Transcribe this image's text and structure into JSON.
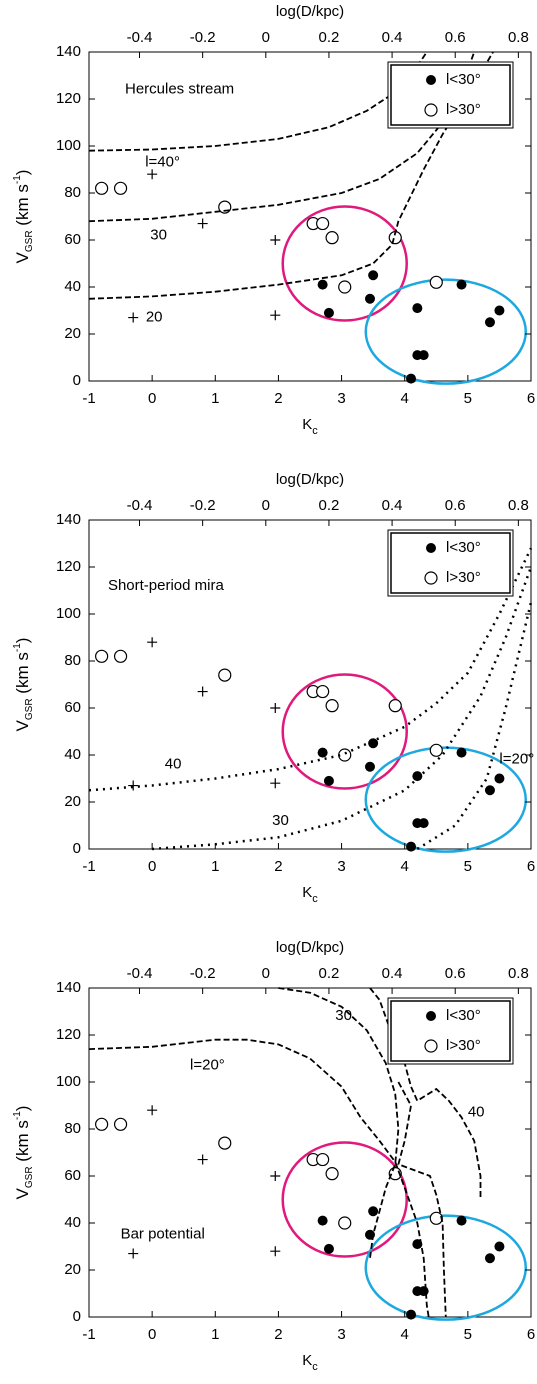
{
  "chart_data": [
    {
      "type": "scatter",
      "title": "Hercules stream",
      "x2label": "log(D/kpc)",
      "xlabel": [
        "K",
        "c"
      ],
      "ylabel": [
        "V",
        "GSR",
        " (km s",
        "-1",
        ")"
      ],
      "xlim": [
        -1,
        6
      ],
      "xticks": [
        -1,
        0,
        1,
        2,
        3,
        4,
        5,
        6
      ],
      "ylim": [
        0,
        140
      ],
      "yticks": [
        0,
        20,
        40,
        60,
        80,
        100,
        120,
        140
      ],
      "x2lim": [
        -0.56,
        0.84
      ],
      "x2ticks": [
        -0.4,
        -0.2,
        0,
        0.2,
        0.4,
        0.6,
        0.8
      ],
      "legend": "upper right",
      "annotations": [
        "l=40°",
        "30",
        "20"
      ],
      "series": [
        {
          "name": "l<30°",
          "marker": "filled",
          "color": "#000000",
          "x": [
            2.7,
            2.8,
            3.45,
            3.5,
            4.2,
            4.2,
            4.3,
            4.1,
            4.9,
            5.35,
            5.5
          ],
          "values": [
            41,
            29,
            35,
            45,
            31,
            11,
            11,
            1,
            41,
            25,
            30
          ]
        },
        {
          "name": "l>30°",
          "marker": "open",
          "color": "#000000",
          "x": [
            -0.8,
            -0.5,
            1.15,
            2.55,
            2.7,
            2.85,
            3.05,
            3.85,
            4.5
          ],
          "values": [
            82,
            82,
            74,
            67,
            67,
            61,
            40,
            61,
            42
          ]
        },
        {
          "marker": "plus",
          "color": "#000000",
          "x": [
            0,
            0.8,
            1.95,
            -0.3,
            1.95
          ],
          "values": [
            88,
            67,
            60,
            27,
            28
          ]
        },
        {
          "style": "dashed",
          "color": "#000000",
          "x": [
            -1,
            0,
            1,
            2,
            2.8,
            3.4,
            3.8,
            4.1,
            4.35
          ],
          "values": [
            98,
            98.5,
            100,
            103,
            108,
            115,
            122,
            130,
            140
          ]
        },
        {
          "style": "dashed",
          "color": "#000000",
          "x": [
            -1,
            0,
            1,
            2,
            3,
            3.6,
            4.2,
            4.6,
            4.9,
            5.1
          ],
          "values": [
            68,
            69,
            72,
            75,
            80,
            86,
            97,
            110,
            125,
            140
          ]
        },
        {
          "style": "dashed",
          "color": "#000000",
          "x": [
            -1,
            0,
            1,
            2,
            3,
            3.5,
            3.8,
            3.9,
            4.3,
            4.6,
            5.0,
            5.4
          ],
          "values": [
            35,
            36,
            38,
            41,
            45,
            50,
            58,
            68,
            90,
            105,
            122,
            140
          ]
        }
      ]
    },
    {
      "type": "scatter",
      "title": "Short-period mira",
      "x2label": "log(D/kpc)",
      "xlabel": [
        "K",
        "c"
      ],
      "ylabel": [
        "V",
        "GSR",
        " (km s",
        "-1",
        ")"
      ],
      "xlim": [
        -1,
        6
      ],
      "xticks": [
        -1,
        0,
        1,
        2,
        3,
        4,
        5,
        6
      ],
      "ylim": [
        0,
        140
      ],
      "yticks": [
        0,
        20,
        40,
        60,
        80,
        100,
        120,
        140
      ],
      "x2lim": [
        -0.56,
        0.84
      ],
      "x2ticks": [
        -0.4,
        -0.2,
        0,
        0.2,
        0.4,
        0.6,
        0.8
      ],
      "legend": "upper right",
      "annotations": [
        "40",
        "30",
        "l=20°"
      ],
      "series": [
        {
          "name": "l<30°",
          "marker": "filled",
          "color": "#000000",
          "x": [
            2.7,
            2.8,
            3.45,
            3.5,
            4.2,
            4.2,
            4.3,
            4.1,
            4.9,
            5.35,
            5.5
          ],
          "values": [
            41,
            29,
            35,
            45,
            31,
            11,
            11,
            1,
            41,
            25,
            30
          ]
        },
        {
          "name": "l>30°",
          "marker": "open",
          "color": "#000000",
          "x": [
            -0.8,
            -0.5,
            1.15,
            2.55,
            2.7,
            2.85,
            3.05,
            3.85,
            4.5
          ],
          "values": [
            82,
            82,
            74,
            67,
            67,
            61,
            40,
            61,
            42
          ]
        },
        {
          "marker": "plus",
          "color": "#000000",
          "x": [
            0,
            0.8,
            1.95,
            -0.3,
            1.95
          ],
          "values": [
            88,
            67,
            60,
            27,
            28
          ]
        },
        {
          "style": "dotted",
          "color": "#000000",
          "x": [
            -1,
            0,
            1,
            2,
            3,
            4,
            4.5,
            5,
            5.5,
            6
          ],
          "values": [
            25,
            27,
            30,
            34,
            40,
            52,
            62,
            75,
            100,
            128
          ]
        },
        {
          "style": "dotted",
          "color": "#000000",
          "x": [
            0,
            1,
            2,
            3,
            4,
            4.6,
            5.2,
            5.6,
            6
          ],
          "values": [
            0,
            2,
            5,
            12,
            25,
            40,
            65,
            90,
            120
          ]
        },
        {
          "style": "dotted",
          "color": "#000000",
          "x": [
            4.2,
            4.8,
            5.3,
            5.6,
            6
          ],
          "values": [
            0,
            10,
            30,
            60,
            105
          ]
        }
      ]
    },
    {
      "type": "scatter",
      "title": "Bar potential",
      "x2label": "log(D/kpc)",
      "xlabel": [
        "K",
        "c"
      ],
      "ylabel": [
        "V",
        "GSR",
        " (km s",
        "-1",
        ")"
      ],
      "xlim": [
        -1,
        6
      ],
      "xticks": [
        -1,
        0,
        1,
        2,
        3,
        4,
        5,
        6
      ],
      "ylim": [
        0,
        140
      ],
      "yticks": [
        0,
        20,
        40,
        60,
        80,
        100,
        120,
        140
      ],
      "x2lim": [
        -0.56,
        0.84
      ],
      "x2ticks": [
        -0.4,
        -0.2,
        0,
        0.2,
        0.4,
        0.6,
        0.8
      ],
      "legend": "upper right",
      "annotations": [
        "l=20°",
        "30",
        "40"
      ],
      "series": [
        {
          "name": "l<30°",
          "marker": "filled",
          "color": "#000000",
          "x": [
            2.7,
            2.8,
            3.45,
            3.5,
            4.2,
            4.2,
            4.3,
            4.1,
            4.9,
            5.35,
            5.5
          ],
          "values": [
            41,
            29,
            35,
            45,
            31,
            11,
            11,
            1,
            41,
            25,
            30
          ]
        },
        {
          "name": "l>30°",
          "marker": "open",
          "color": "#000000",
          "x": [
            -0.8,
            -0.5,
            1.15,
            2.55,
            2.7,
            2.85,
            3.05,
            3.85,
            4.5
          ],
          "values": [
            82,
            82,
            74,
            67,
            67,
            61,
            40,
            61,
            42
          ]
        },
        {
          "marker": "plus",
          "color": "#000000",
          "x": [
            0,
            0.8,
            1.95,
            -0.3,
            1.95
          ],
          "values": [
            88,
            67,
            60,
            27,
            28
          ]
        },
        {
          "style": "dashed",
          "color": "#000000",
          "x": [
            -1,
            0,
            1,
            1.5,
            2,
            2.5,
            3,
            3.3,
            3.6,
            3.85,
            4.0,
            4.2,
            4.3,
            4.35,
            4.38
          ],
          "values": [
            114,
            115,
            118,
            118,
            116,
            110,
            98,
            85,
            75,
            66,
            55,
            40,
            25,
            5,
            0
          ]
        },
        {
          "style": "dashed",
          "color": "#000000",
          "x": [
            2,
            2.5,
            3,
            3.4,
            3.7,
            3.85,
            3.9,
            3.85,
            3.7,
            3.6,
            3.5,
            3.45
          ],
          "values": [
            140,
            138,
            132,
            122,
            108,
            95,
            80,
            65,
            55,
            45,
            35,
            25
          ]
        },
        {
          "style": "dashed",
          "color": "#000000",
          "x": [
            3.45,
            3.6,
            3.8,
            4.0,
            4.1,
            4.2,
            4.5,
            4.7,
            4.9,
            5.1,
            5.2,
            5.2
          ],
          "values": [
            140,
            135,
            120,
            108,
            98,
            92,
            97,
            92,
            85,
            75,
            60,
            50
          ]
        },
        {
          "style": "dashed",
          "color": "#000000",
          "x": [
            3.9,
            4.1,
            4.0,
            3.9,
            4.1,
            4.4,
            4.5,
            4.6,
            4.62,
            4.65
          ],
          "values": [
            100,
            90,
            75,
            65,
            63,
            60,
            52,
            40,
            20,
            0
          ]
        }
      ]
    }
  ]
}
